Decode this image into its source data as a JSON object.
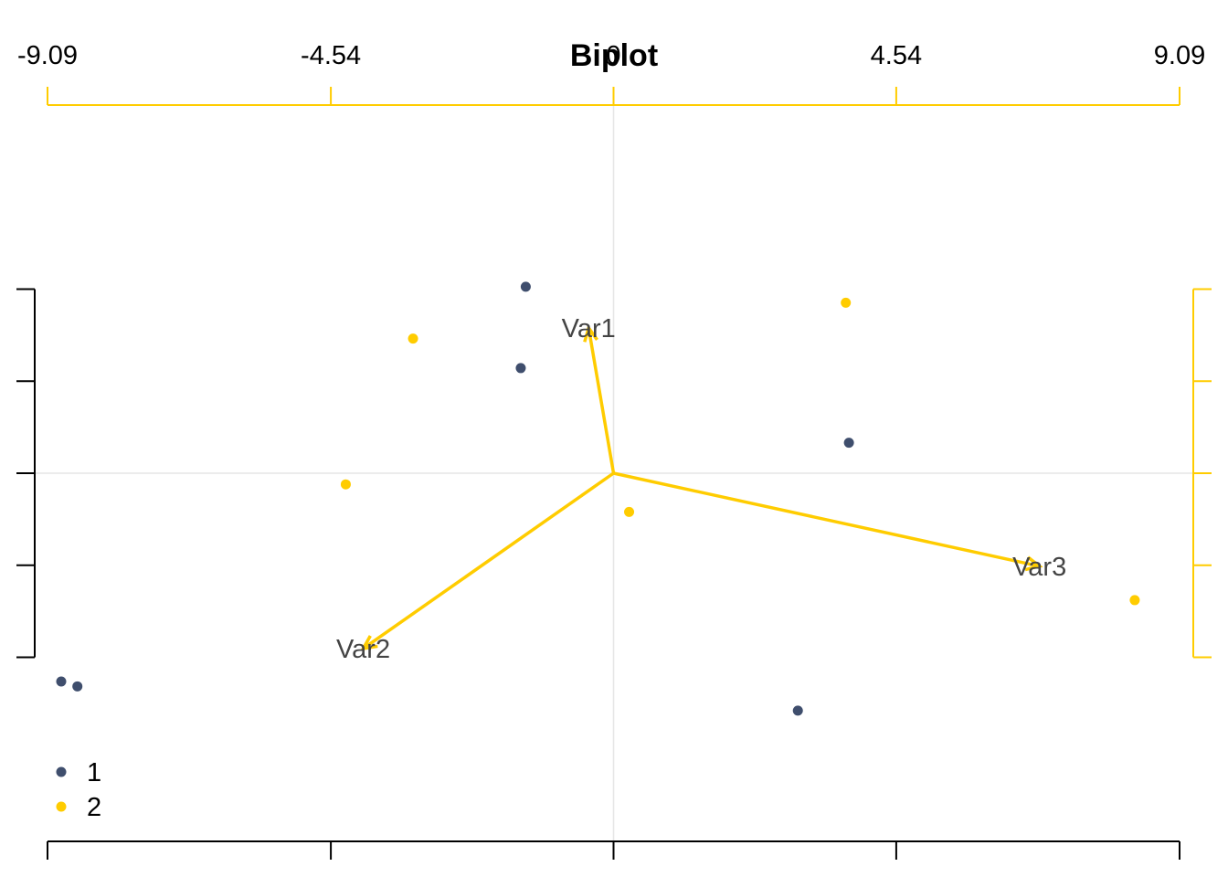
{
  "chart_data": {
    "type": "scatter",
    "title": "Biplot",
    "xlabel": "",
    "ylabel": "",
    "xlim": [
      -9.09,
      9.09
    ],
    "ylim": [
      -7.6,
      7.6
    ],
    "top_axis": {
      "color": "#FFCC00",
      "ticks": [
        -9.09,
        -4.54,
        0,
        4.54,
        9.09
      ],
      "tick_labels": [
        "-9.09",
        "-4.54",
        "0",
        "4.54",
        "9.09"
      ]
    },
    "bottom_axis": {
      "color": "#000000",
      "ticks": [
        -9.09,
        -4.54,
        0,
        4.54,
        9.09
      ]
    },
    "left_axis": {
      "color": "#000000",
      "ticks": [
        3.8,
        1.9,
        0,
        -1.9,
        -3.8
      ]
    },
    "right_axis": {
      "color": "#FFCC00",
      "ticks": [
        3.8,
        1.9,
        0,
        -1.9,
        -3.8
      ]
    },
    "grid": {
      "zero_lines": true,
      "color": "#E6E6E6"
    },
    "legend": {
      "placement": "bottom-left",
      "entries": [
        {
          "label": "1",
          "color": "#3F4E6D"
        },
        {
          "label": "2",
          "color": "#FFCC00"
        }
      ]
    },
    "series": [
      {
        "name": "1",
        "color": "#3F4E6D",
        "points": [
          {
            "x": -1.41,
            "y": 3.85
          },
          {
            "x": -1.49,
            "y": 2.17
          },
          {
            "x": 3.78,
            "y": 0.63
          },
          {
            "x": 2.96,
            "y": -4.9
          },
          {
            "x": -8.87,
            "y": -4.3
          },
          {
            "x": -8.61,
            "y": -4.4
          }
        ]
      },
      {
        "name": "2",
        "color": "#FFCC00",
        "points": [
          {
            "x": 3.73,
            "y": 3.52
          },
          {
            "x": -3.22,
            "y": 2.78
          },
          {
            "x": -4.3,
            "y": -0.23
          },
          {
            "x": 0.25,
            "y": -0.8
          },
          {
            "x": 8.37,
            "y": -2.62
          }
        ]
      }
    ],
    "vectors": {
      "color": "#FFCC00",
      "items": [
        {
          "label": "Var1",
          "x": -0.4,
          "y": 3.0
        },
        {
          "label": "Var2",
          "x": -4.02,
          "y": -3.62
        },
        {
          "label": "Var3",
          "x": 6.84,
          "y": -1.92
        }
      ]
    }
  }
}
